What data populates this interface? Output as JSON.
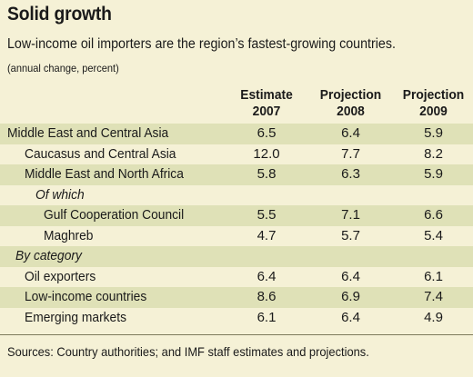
{
  "chart_data": {
    "type": "table",
    "title": "Solid growth",
    "subtitle": "Low-income oil importers are the region’s fastest-growing countries.",
    "units": "(annual change, percent)",
    "columns": [
      {
        "top": "Estimate",
        "bottom": "2007"
      },
      {
        "top": "Projection",
        "bottom": "2008"
      },
      {
        "top": "Projection",
        "bottom": "2009"
      }
    ],
    "rows": [
      {
        "label": "Middle East and Central Asia",
        "values": [
          "6.5",
          "6.4",
          "5.9"
        ]
      },
      {
        "label": "Caucasus and Central Asia",
        "values": [
          "12.0",
          "7.7",
          "8.2"
        ]
      },
      {
        "label": "Middle East and North Africa",
        "values": [
          "5.8",
          "6.3",
          "5.9"
        ]
      },
      {
        "label": "Of which",
        "values": [
          "",
          "",
          ""
        ]
      },
      {
        "label": "Gulf Cooperation Council",
        "values": [
          "5.5",
          "7.1",
          "6.6"
        ]
      },
      {
        "label": "Maghreb",
        "values": [
          "4.7",
          "5.7",
          "5.4"
        ]
      },
      {
        "label": "By category",
        "values": [
          "",
          "",
          ""
        ]
      },
      {
        "label": "Oil exporters",
        "values": [
          "6.4",
          "6.4",
          "6.1"
        ]
      },
      {
        "label": "Low-income countries",
        "values": [
          "8.6",
          "6.9",
          "7.4"
        ]
      },
      {
        "label": "Emerging markets",
        "values": [
          "6.1",
          "6.4",
          "4.9"
        ]
      }
    ],
    "source": "Sources: Country authorities; and IMF staff estimates and projections."
  },
  "colors": {
    "panel_background": "#f5f1d6",
    "row_shade": "#dfe1b7",
    "text": "#1a1a1a"
  }
}
